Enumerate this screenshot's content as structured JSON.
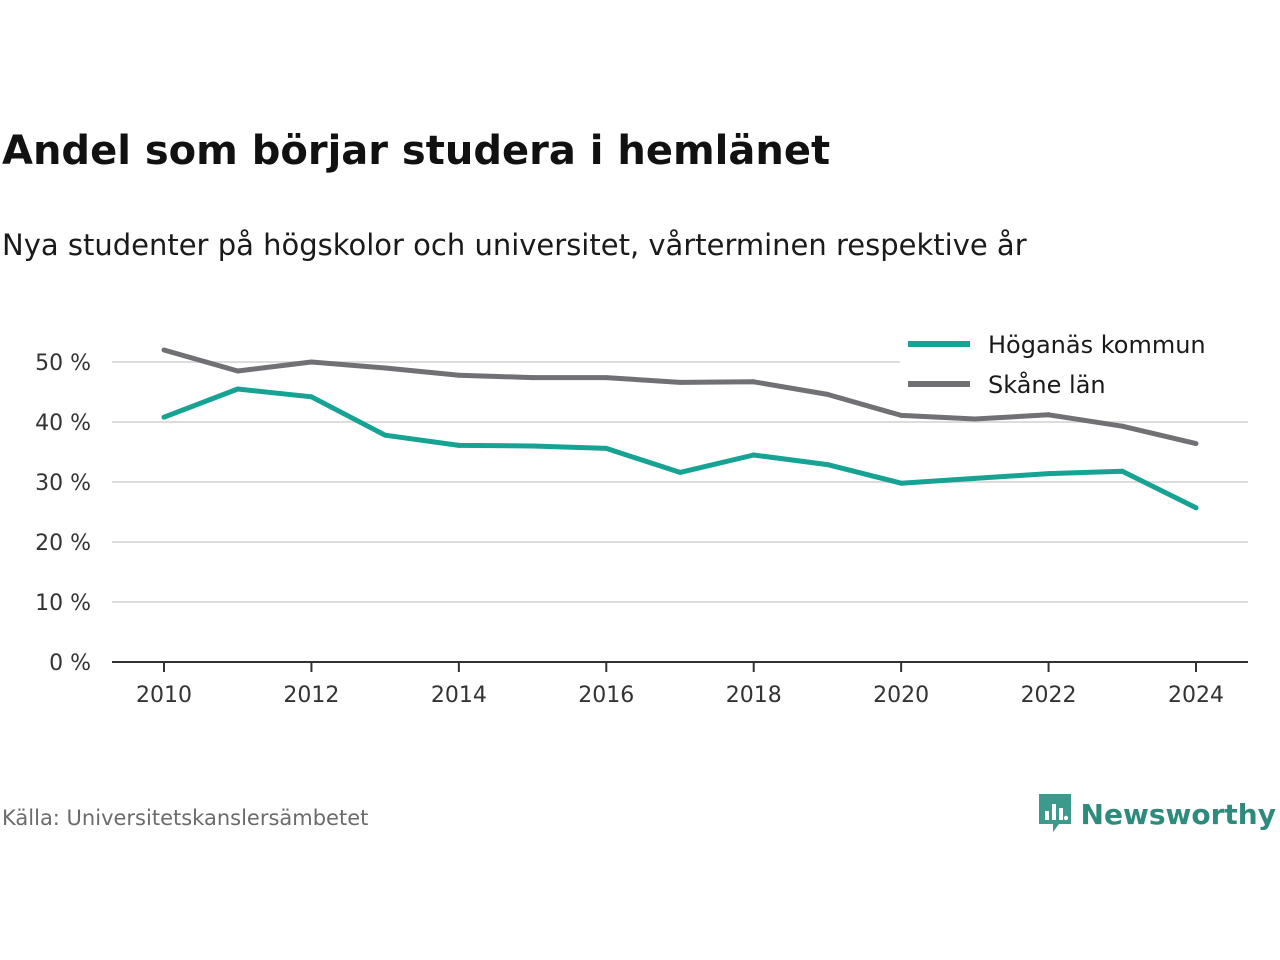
{
  "chart_data": {
    "type": "line",
    "title": "Andel som börjar studera i hemlänet",
    "subtitle": "Nya studenter på högskolor och universitet, vårterminen respektive år",
    "source": "Källa: Universitetskanslersämbetet",
    "brand": "Newsworthy",
    "x": [
      2010,
      2011,
      2012,
      2013,
      2014,
      2015,
      2016,
      2017,
      2018,
      2019,
      2020,
      2021,
      2022,
      2023,
      2024
    ],
    "x_ticks": [
      "2010",
      "2012",
      "2014",
      "2016",
      "2018",
      "2020",
      "2022",
      "2024"
    ],
    "y_ticks": [
      "0 %",
      "10 %",
      "20 %",
      "30 %",
      "40 %",
      "50 %"
    ],
    "ylim": [
      0,
      50
    ],
    "grid": true,
    "legend_position": "top-right",
    "series": [
      {
        "name": "Höganäs kommun",
        "color": "#16a394",
        "values": [
          40.8,
          45.5,
          44.2,
          37.8,
          36.1,
          36.0,
          35.6,
          31.6,
          34.5,
          32.9,
          29.8,
          30.6,
          31.4,
          31.8,
          25.7
        ]
      },
      {
        "name": "Skåne län",
        "color": "#707075",
        "values": [
          52.0,
          48.5,
          50.0,
          49.0,
          47.8,
          47.4,
          47.4,
          46.6,
          46.7,
          44.6,
          41.1,
          40.5,
          41.2,
          39.3,
          36.4
        ]
      }
    ]
  }
}
